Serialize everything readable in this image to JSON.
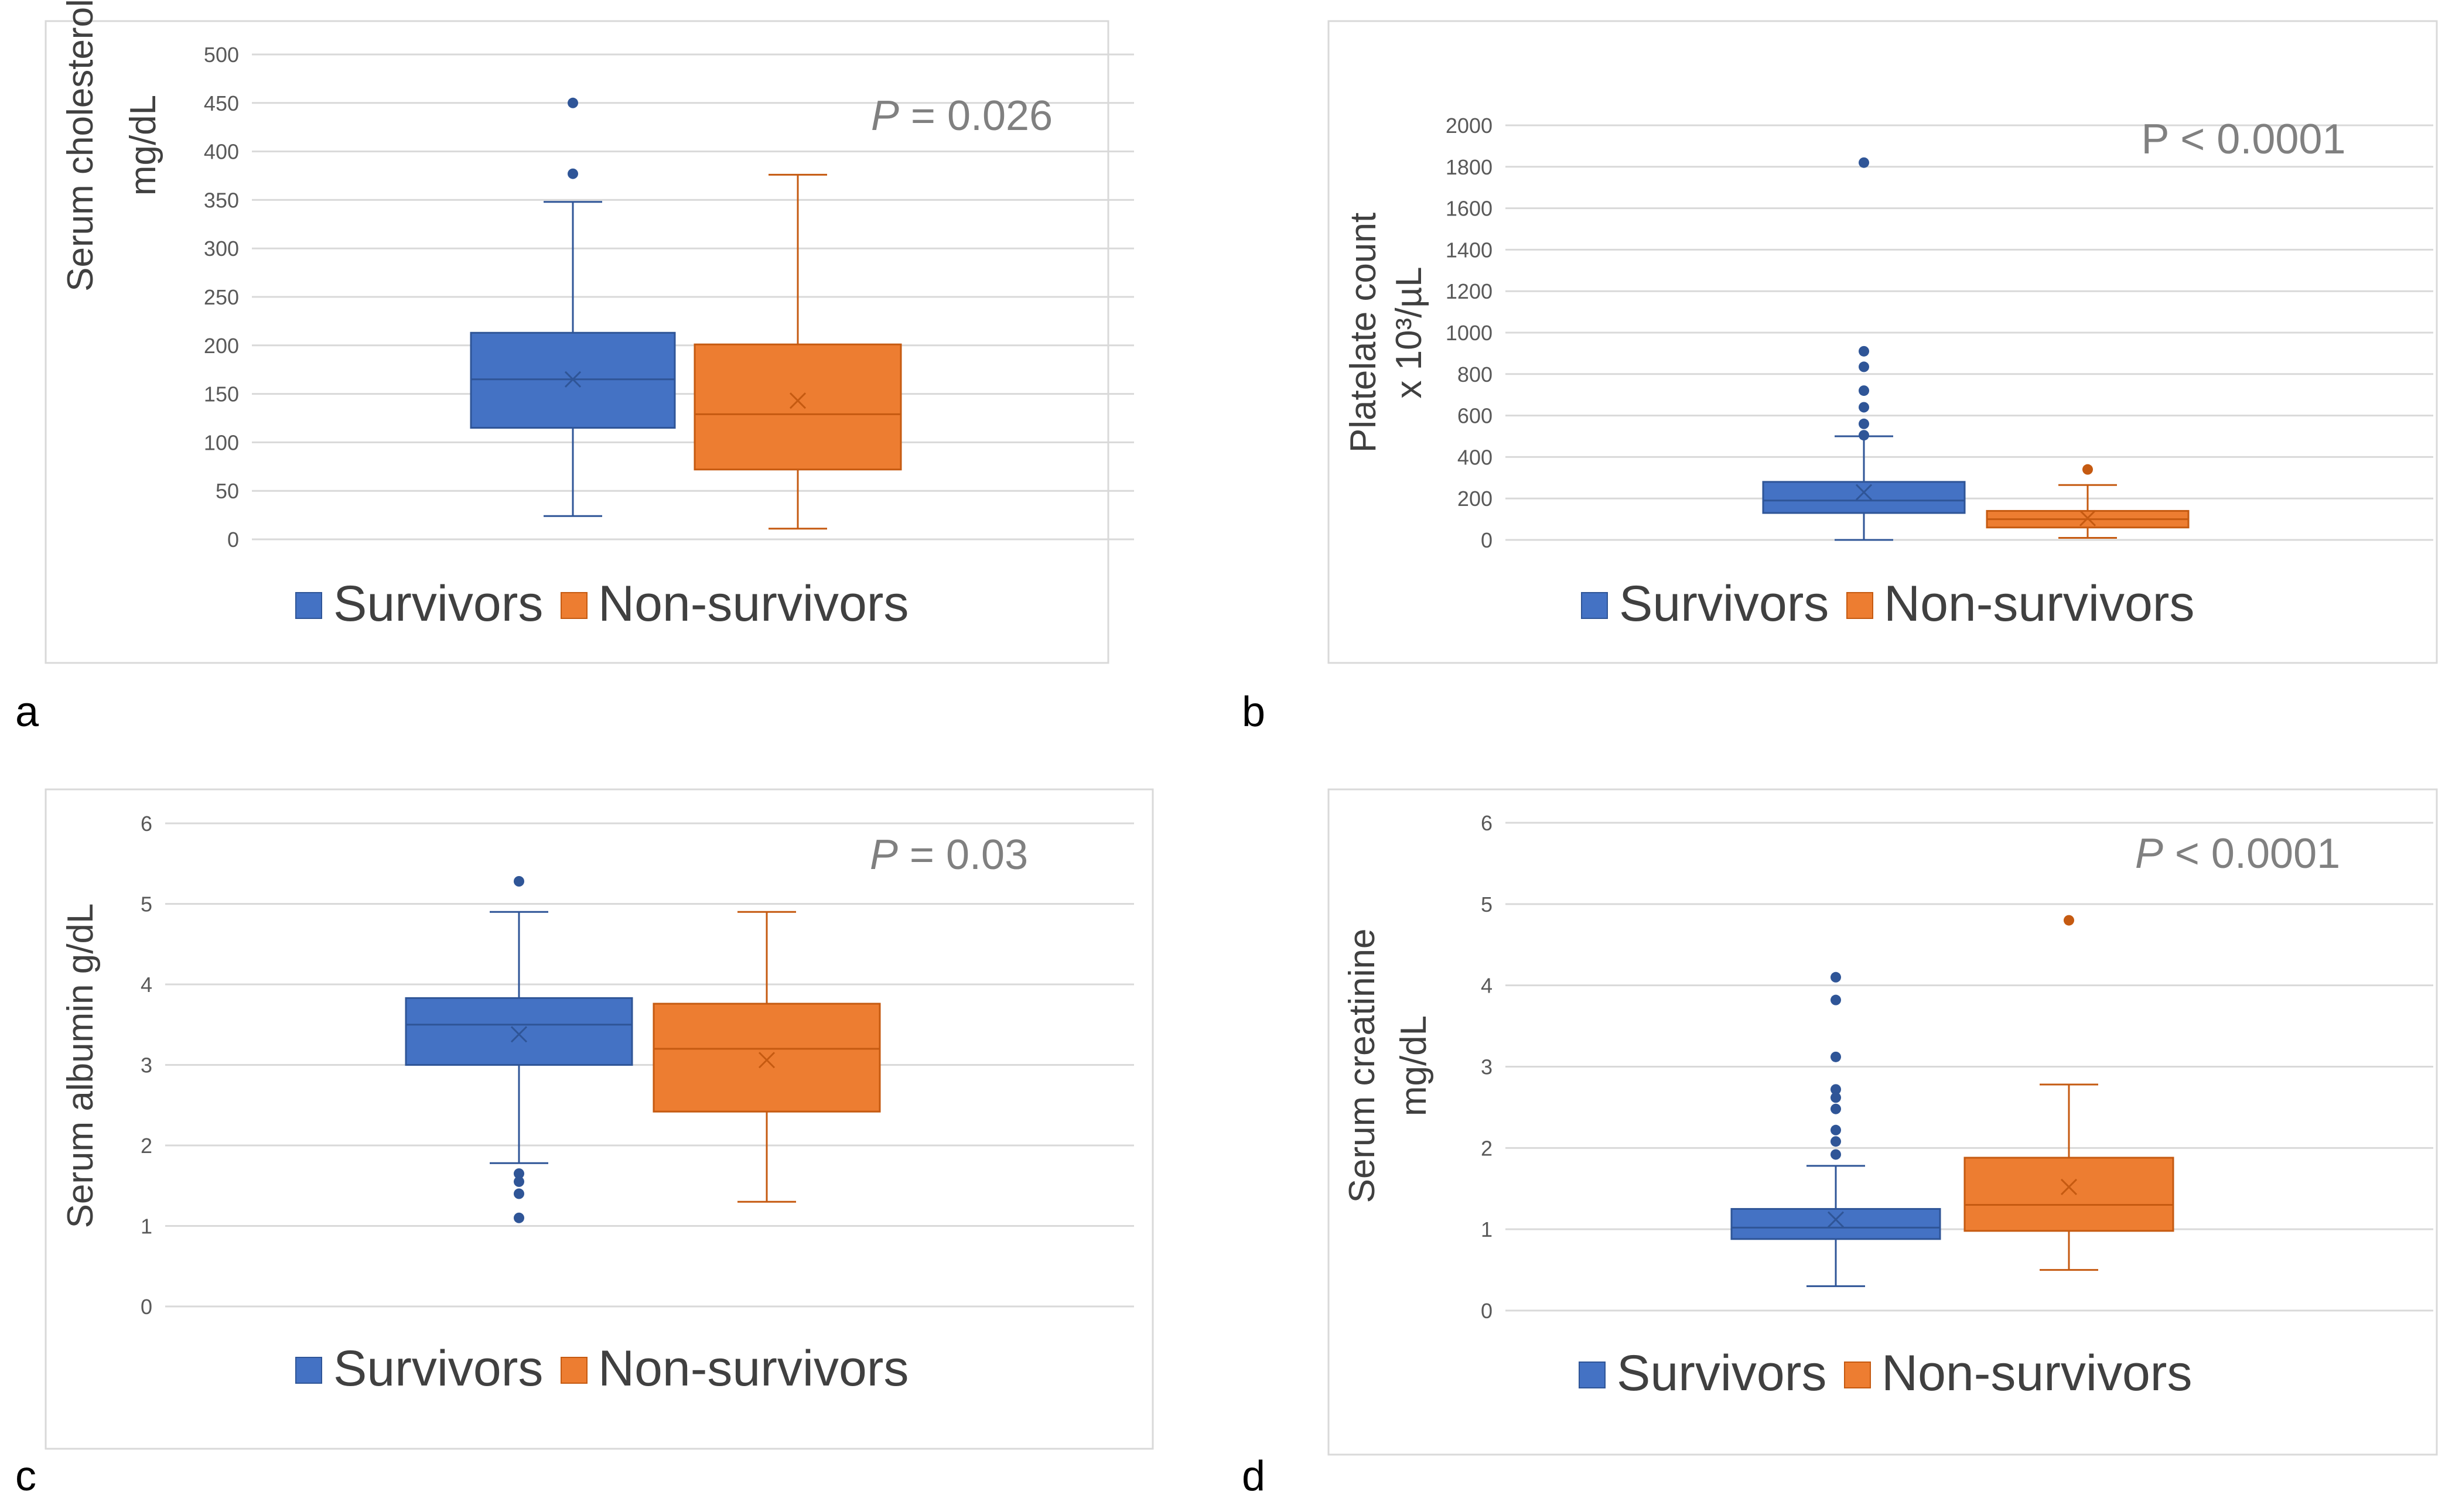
{
  "figure": {
    "series_names": [
      "Survivors",
      "Non-survivors"
    ],
    "colors": {
      "survivors_fill": "#4472C4",
      "survivors_line": "#2F5597",
      "nonsurvivors_fill": "#ED7D31",
      "nonsurvivors_line": "#C55A11",
      "grid": "#D9D9D9",
      "panel_border": "#D9D9D9",
      "axis_text": "#595959",
      "pvalue_text": "#808080"
    }
  },
  "chart_data": [
    {
      "panel": "a",
      "type": "box",
      "ylabel_lines": [
        "Serum cholesterol",
        "mg/dL"
      ],
      "ylim": [
        0,
        500
      ],
      "yticks": [
        0,
        50,
        100,
        150,
        200,
        250,
        300,
        350,
        400,
        450,
        500
      ],
      "pvalue": {
        "prefix": "P",
        "rest": " = 0.026"
      },
      "series": [
        {
          "name": "Survivors",
          "min": 24,
          "q1": 115,
          "median": 165,
          "q3": 213,
          "max": 348,
          "mean": 165,
          "outliers": [
            377,
            450
          ]
        },
        {
          "name": "Non-survivors",
          "min": 11,
          "q1": 72,
          "median": 129,
          "q3": 201,
          "max": 376,
          "mean": 143,
          "outliers": []
        }
      ],
      "legend": [
        "Survivors",
        "Non-survivors"
      ]
    },
    {
      "panel": "b",
      "type": "box",
      "ylabel_lines": [
        "Platelate count",
        "x 10³/µL"
      ],
      "ylim": [
        0,
        2000
      ],
      "yticks": [
        0,
        200,
        400,
        600,
        800,
        1000,
        1200,
        1400,
        1600,
        1800,
        2000
      ],
      "pvalue": {
        "prefix": "",
        "rest": "P < 0.0001"
      },
      "series": [
        {
          "name": "Survivors",
          "min": 0,
          "q1": 130,
          "median": 190,
          "q3": 280,
          "max": 500,
          "mean": 230,
          "outliers": [
            505,
            560,
            640,
            720,
            835,
            910,
            1820
          ]
        },
        {
          "name": "Non-survivors",
          "min": 10,
          "q1": 60,
          "median": 100,
          "q3": 140,
          "max": 265,
          "mean": 105,
          "outliers": [
            340
          ]
        }
      ],
      "legend": [
        "Survivors",
        "Non-survivors"
      ]
    },
    {
      "panel": "c",
      "type": "box",
      "ylabel_lines": [
        "Serum albumin g/dL"
      ],
      "ylim": [
        0,
        6
      ],
      "yticks": [
        0,
        1,
        2,
        3,
        4,
        5,
        6
      ],
      "pvalue": {
        "prefix": "P",
        "rest": " = 0.03"
      },
      "series": [
        {
          "name": "Survivors",
          "min": 1.78,
          "q1": 3.0,
          "median": 3.5,
          "q3": 3.83,
          "max": 4.9,
          "mean": 3.38,
          "outliers": [
            1.1,
            1.4,
            1.55,
            1.65,
            5.28
          ]
        },
        {
          "name": "Non-survivors",
          "min": 1.3,
          "q1": 2.42,
          "median": 3.2,
          "q3": 3.76,
          "max": 4.9,
          "mean": 3.06,
          "outliers": []
        }
      ],
      "legend": [
        "Survivors",
        "Non-survivors"
      ]
    },
    {
      "panel": "d",
      "type": "box",
      "ylabel_lines": [
        "Serum creatinine",
        "mg/dL"
      ],
      "ylim": [
        0,
        6
      ],
      "yticks": [
        0,
        1,
        2,
        3,
        4,
        5,
        6
      ],
      "pvalue": {
        "prefix": "P",
        "rest": " < 0.0001"
      },
      "series": [
        {
          "name": "Survivors",
          "min": 0.3,
          "q1": 0.88,
          "median": 1.02,
          "q3": 1.25,
          "max": 1.78,
          "mean": 1.12,
          "outliers": [
            1.92,
            2.08,
            2.22,
            2.48,
            2.62,
            2.72,
            3.12,
            3.82,
            4.1
          ]
        },
        {
          "name": "Non-survivors",
          "min": 0.5,
          "q1": 0.98,
          "median": 1.3,
          "q3": 1.88,
          "max": 2.78,
          "mean": 1.52,
          "outliers": [
            4.8
          ]
        }
      ],
      "legend": [
        "Survivors",
        "Non-survivors"
      ]
    }
  ]
}
